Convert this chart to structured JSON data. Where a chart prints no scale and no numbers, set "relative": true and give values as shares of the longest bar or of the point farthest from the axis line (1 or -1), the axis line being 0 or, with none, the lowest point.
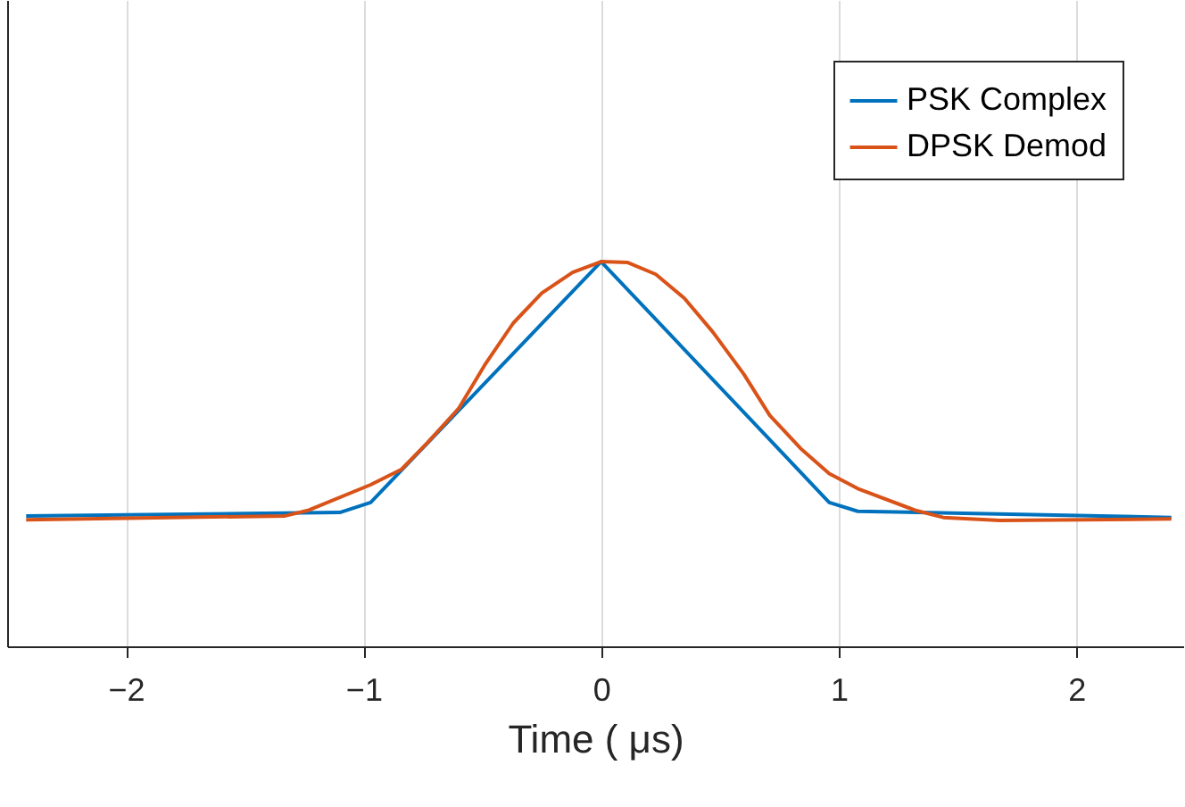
{
  "chart_data": {
    "type": "line",
    "xlabel": "Time ( μs)",
    "relative": true,
    "xlim": [
      -2.5,
      2.45
    ],
    "xticks": [
      -2,
      -1,
      0,
      1,
      2
    ],
    "grid": "x",
    "legend": "top right",
    "line_style": "solid",
    "series": [
      {
        "name": "PSK Complex",
        "color": "#0072bd",
        "x": [
          -2.42,
          -1.1,
          -0.97,
          0,
          0.96,
          1.08,
          2.4
        ],
        "values": [
          0.339,
          0.348,
          0.374,
          1,
          0.374,
          0.351,
          0.335
        ]
      },
      {
        "name": "DPSK Demod",
        "color": "#d95319",
        "x": [
          -2.42,
          -1.33,
          -1.23,
          -0.97,
          -0.84,
          -0.73,
          -0.6,
          -0.49,
          -0.37,
          -0.25,
          -0.12,
          0,
          0.11,
          0.23,
          0.35,
          0.47,
          0.6,
          0.71,
          0.84,
          0.96,
          1.08,
          1.32,
          1.44,
          1.68,
          2.4
        ],
        "values": [
          0.329,
          0.339,
          0.354,
          0.42,
          0.46,
          0.53,
          0.618,
          0.731,
          0.84,
          0.918,
          0.972,
          1,
          0.998,
          0.967,
          0.905,
          0.817,
          0.708,
          0.6,
          0.514,
          0.449,
          0.41,
          0.354,
          0.335,
          0.327,
          0.331
        ]
      }
    ]
  }
}
